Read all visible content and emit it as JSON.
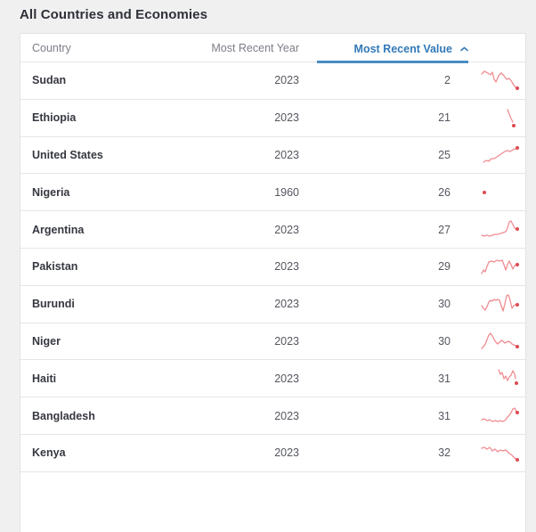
{
  "page": {
    "title": "All Countries and Economies"
  },
  "colors": {
    "accent_blue_text": "#3279b7",
    "accent_blue_underline": "#4a8cc2",
    "spark_line": "#f08d92",
    "spark_dot": "#dd4a52"
  },
  "table": {
    "columns": {
      "country": {
        "label": "Country",
        "sortable": true
      },
      "year": {
        "label": "Most Recent Year",
        "sortable": true
      },
      "value": {
        "label": "Most Recent Value",
        "sortable": true,
        "sorted": "ascending",
        "sort_icon": "chevron-up"
      }
    },
    "rows": [
      {
        "country": "Sudan",
        "year": "2023",
        "value": "2"
      },
      {
        "country": "Ethiopia",
        "year": "2023",
        "value": "21"
      },
      {
        "country": "United States",
        "year": "2023",
        "value": "25"
      },
      {
        "country": "Nigeria",
        "year": "1960",
        "value": "26"
      },
      {
        "country": "Argentina",
        "year": "2023",
        "value": "27"
      },
      {
        "country": "Pakistan",
        "year": "2023",
        "value": "29"
      },
      {
        "country": "Burundi",
        "year": "2023",
        "value": "30"
      },
      {
        "country": "Niger",
        "year": "2023",
        "value": "30"
      },
      {
        "country": "Haiti",
        "year": "2023",
        "value": "31"
      },
      {
        "country": "Bangladesh",
        "year": "2023",
        "value": "31"
      },
      {
        "country": "Kenya",
        "year": "2023",
        "value": "32"
      }
    ]
  },
  "chart_data": {
    "type": "line",
    "note": "sparkline trend per row, coords in 48x28 box (y down), dot = most recent point",
    "series": [
      {
        "name": "Sudan",
        "line": [
          [
            2,
            7
          ],
          [
            5,
            4
          ],
          [
            9,
            6
          ],
          [
            12,
            8
          ],
          [
            14,
            5
          ],
          [
            16,
            13
          ],
          [
            18,
            16
          ],
          [
            21,
            9
          ],
          [
            24,
            6
          ],
          [
            27,
            9
          ],
          [
            30,
            13
          ],
          [
            33,
            12
          ],
          [
            36,
            16
          ],
          [
            39,
            21
          ],
          [
            42,
            23
          ]
        ],
        "dot": [
          42,
          23
        ]
      },
      {
        "name": "Ethiopia",
        "line": [
          [
            31,
            5
          ],
          [
            33,
            10
          ],
          [
            35,
            15
          ],
          [
            37,
            19
          ]
        ],
        "dot": [
          38,
          23
        ]
      },
      {
        "name": "United States",
        "line": [
          [
            4,
            22
          ],
          [
            7,
            20
          ],
          [
            10,
            21
          ],
          [
            13,
            18
          ],
          [
            16,
            18
          ],
          [
            19,
            16
          ],
          [
            22,
            14
          ],
          [
            25,
            12
          ],
          [
            28,
            10
          ],
          [
            31,
            9
          ],
          [
            34,
            10
          ],
          [
            37,
            8
          ],
          [
            40,
            7
          ]
        ],
        "dot": [
          42,
          6
        ]
      },
      {
        "name": "Nigeria",
        "line": [],
        "dot": [
          5,
          14
        ]
      },
      {
        "name": "Argentina",
        "line": [
          [
            2,
            20
          ],
          [
            5,
            21
          ],
          [
            8,
            20
          ],
          [
            11,
            21
          ],
          [
            14,
            20
          ],
          [
            17,
            19
          ],
          [
            20,
            19
          ],
          [
            23,
            18
          ],
          [
            26,
            17
          ],
          [
            29,
            16
          ],
          [
            31,
            12
          ],
          [
            33,
            5
          ],
          [
            35,
            4
          ],
          [
            37,
            8
          ],
          [
            39,
            12
          ],
          [
            41,
            13
          ]
        ],
        "dot": [
          42,
          13
        ]
      },
      {
        "name": "Pakistan",
        "line": [
          [
            2,
            22
          ],
          [
            4,
            18
          ],
          [
            6,
            20
          ],
          [
            8,
            14
          ],
          [
            10,
            9
          ],
          [
            13,
            8
          ],
          [
            16,
            9
          ],
          [
            19,
            7
          ],
          [
            22,
            8
          ],
          [
            25,
            7
          ],
          [
            27,
            12
          ],
          [
            29,
            18
          ],
          [
            31,
            12
          ],
          [
            33,
            8
          ],
          [
            35,
            12
          ],
          [
            37,
            17
          ],
          [
            39,
            13
          ],
          [
            41,
            12
          ]
        ],
        "dot": [
          42,
          12
        ]
      },
      {
        "name": "Burundi",
        "line": [
          [
            2,
            16
          ],
          [
            4,
            19
          ],
          [
            6,
            21
          ],
          [
            8,
            17
          ],
          [
            10,
            12
          ],
          [
            12,
            10
          ],
          [
            14,
            11
          ],
          [
            16,
            9
          ],
          [
            18,
            10
          ],
          [
            20,
            9
          ],
          [
            22,
            10
          ],
          [
            24,
            16
          ],
          [
            26,
            22
          ],
          [
            28,
            14
          ],
          [
            30,
            5
          ],
          [
            32,
            4
          ],
          [
            34,
            10
          ],
          [
            36,
            19
          ],
          [
            38,
            16
          ],
          [
            40,
            15
          ]
        ],
        "dot": [
          42,
          15
        ]
      },
      {
        "name": "Niger",
        "line": [
          [
            2,
            22
          ],
          [
            4,
            20
          ],
          [
            6,
            17
          ],
          [
            8,
            12
          ],
          [
            10,
            7
          ],
          [
            12,
            5
          ],
          [
            14,
            8
          ],
          [
            16,
            12
          ],
          [
            18,
            15
          ],
          [
            20,
            17
          ],
          [
            22,
            15
          ],
          [
            24,
            13
          ],
          [
            26,
            14
          ],
          [
            28,
            16
          ],
          [
            30,
            15
          ],
          [
            32,
            14
          ],
          [
            34,
            15
          ],
          [
            36,
            17
          ],
          [
            38,
            18
          ],
          [
            40,
            19
          ]
        ],
        "dot": [
          42,
          20
        ]
      },
      {
        "name": "Haiti",
        "line": [
          [
            21,
            4
          ],
          [
            23,
            9
          ],
          [
            25,
            7
          ],
          [
            27,
            14
          ],
          [
            29,
            11
          ],
          [
            31,
            16
          ],
          [
            33,
            12
          ],
          [
            35,
            10
          ],
          [
            37,
            5
          ],
          [
            39,
            9
          ],
          [
            40,
            14
          ]
        ],
        "dot": [
          41,
          19
        ]
      },
      {
        "name": "Bangladesh",
        "line": [
          [
            2,
            18
          ],
          [
            5,
            17
          ],
          [
            8,
            19
          ],
          [
            11,
            18
          ],
          [
            14,
            20
          ],
          [
            17,
            19
          ],
          [
            20,
            20
          ],
          [
            23,
            19
          ],
          [
            26,
            20
          ],
          [
            29,
            18
          ],
          [
            31,
            15
          ],
          [
            33,
            13
          ],
          [
            35,
            10
          ],
          [
            37,
            6
          ],
          [
            39,
            5
          ],
          [
            41,
            9
          ]
        ],
        "dot": [
          42,
          10
        ]
      },
      {
        "name": "Kenya",
        "line": [
          [
            2,
            9
          ],
          [
            5,
            8
          ],
          [
            8,
            10
          ],
          [
            11,
            8
          ],
          [
            14,
            12
          ],
          [
            17,
            10
          ],
          [
            20,
            13
          ],
          [
            23,
            11
          ],
          [
            26,
            12
          ],
          [
            29,
            11
          ],
          [
            32,
            14
          ],
          [
            35,
            16
          ],
          [
            38,
            19
          ],
          [
            40,
            21
          ]
        ],
        "dot": [
          42,
          22
        ]
      }
    ]
  }
}
